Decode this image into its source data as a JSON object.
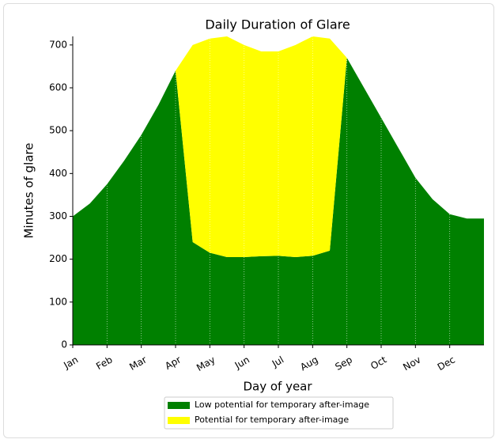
{
  "chart_data": {
    "type": "stacked_area",
    "title": "Daily Duration of Glare",
    "x_label": "Day of year",
    "y_label": "Minutes of glare",
    "categories": [
      "Jan",
      null,
      "Feb",
      null,
      "Mar",
      null,
      "Apr",
      null,
      "May",
      null,
      "Jun",
      null,
      "Jul",
      null,
      "Aug",
      null,
      "Sep",
      null,
      "Oct",
      null,
      "Nov",
      null,
      "Dec",
      null,
      null
    ],
    "series": [
      {
        "name": "Low potential for temporary after-image",
        "color": "#008000",
        "values": [
          300,
          330,
          375,
          430,
          490,
          560,
          640,
          240,
          215,
          205,
          205,
          207,
          208,
          205,
          208,
          220,
          670,
          600,
          530,
          460,
          390,
          340,
          305,
          295,
          295
        ]
      },
      {
        "name": "Potential for temporary after-image",
        "color": "#ffff00",
        "values": [
          0,
          0,
          0,
          0,
          0,
          0,
          0,
          460,
          500,
          515,
          495,
          478,
          477,
          495,
          512,
          495,
          0,
          0,
          0,
          0,
          0,
          0,
          0,
          0,
          0
        ]
      }
    ],
    "ylim": [
      0,
      720
    ],
    "yticks": [
      0,
      100,
      200,
      300,
      400,
      500,
      600,
      700
    ],
    "xgrid": true,
    "legend": "bottom"
  }
}
